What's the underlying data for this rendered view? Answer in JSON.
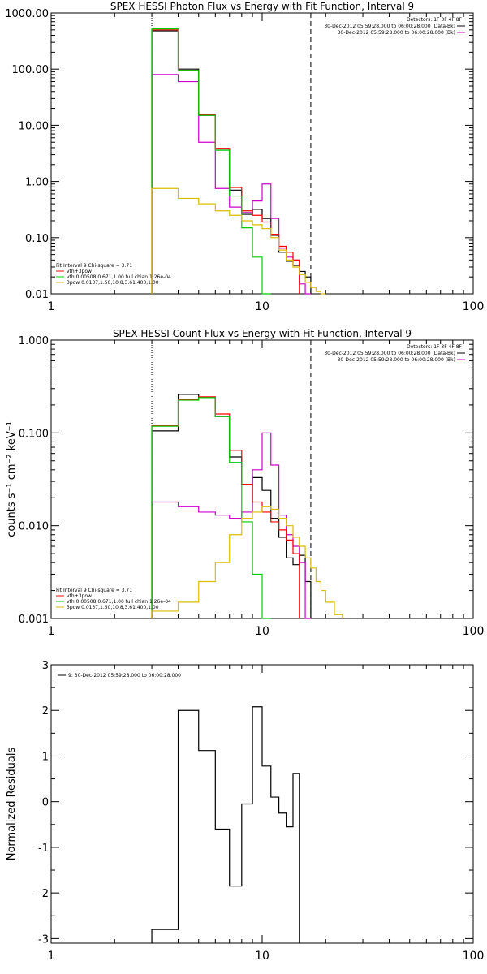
{
  "chart_data": [
    {
      "type": "line",
      "title": "SPEX HESSI Photon Flux vs Energy with Fit Function, Interval 9",
      "ylabel": "",
      "xscale": "log",
      "yscale": "log",
      "xlim": [
        1,
        100
      ],
      "ylim": [
        0.01,
        1000
      ],
      "x_ticks": [
        "1",
        "10",
        "100"
      ],
      "y_ticks": [
        "0.01",
        "0.10",
        "1.00",
        "10.00",
        "100.00",
        "1000.00"
      ],
      "legend_topright": [
        "Detectors: 1F 3F 4F 8F",
        "30-Dec-2012 05:59:28.000 to 06:00:28.000 (Data-Bk)",
        "30-Dec-2012 05:59:28.000 to 06:00:28.000 (Bk)"
      ],
      "legend_bottomleft": [
        "Fit Interval 9   Chi-square = 3.71",
        "vth+3pow",
        "vth 0.00508,0.671,1.00  full chian 1.26e-04",
        "3pow 0.0137,1.50,10.8,3.61,400,1.00"
      ],
      "vlines": [
        {
          "x": 3,
          "style": "dotted"
        },
        {
          "x": 17,
          "style": "dashed"
        }
      ],
      "edges": [
        3,
        4,
        5,
        6,
        7,
        8,
        9,
        10,
        11,
        12,
        13,
        14,
        15,
        16,
        17,
        18,
        19,
        20,
        22,
        24
      ],
      "series": [
        {
          "name": "Data-Bk",
          "color": "#000000",
          "values": [
            480,
            100,
            15,
            3.8,
            0.7,
            0.26,
            0.32,
            0.22,
            0.11,
            0.055,
            0.038,
            0.032,
            0.025,
            0.02
          ]
        },
        {
          "name": "Bk",
          "color": "#cc00cc",
          "values": [
            80,
            60,
            5,
            0.75,
            0.35,
            0.28,
            0.45,
            0.9,
            0.22,
            0.065,
            0.045,
            0.04,
            0.015,
            0.008
          ]
        },
        {
          "name": "vth+3pow",
          "color": "#ff0000",
          "values": [
            500,
            95,
            15.5,
            3.9,
            0.78,
            0.3,
            0.25,
            0.19,
            0.115,
            0.07,
            0.055,
            0.04
          ]
        },
        {
          "name": "vth",
          "color": "#00cc00",
          "values": [
            520,
            95,
            15,
            3.6,
            0.55,
            0.15,
            0.045,
            0.01
          ]
        },
        {
          "name": "3pow",
          "color": "#ddbb00",
          "values": [
            0.75,
            0.5,
            0.4,
            0.3,
            0.25,
            0.2,
            0.17,
            0.145,
            0.1,
            0.06,
            0.04,
            0.03,
            0.022,
            0.016,
            0.013,
            0.011,
            0.01
          ]
        }
      ]
    },
    {
      "type": "line",
      "title": "SPEX HESSI Count Flux vs Energy with Fit Function, Interval 9",
      "ylabel": "counts s⁻¹ cm⁻² keV⁻¹",
      "xscale": "log",
      "yscale": "log",
      "xlim": [
        1,
        100
      ],
      "ylim": [
        0.001,
        1
      ],
      "x_ticks": [
        "1",
        "10",
        "100"
      ],
      "y_ticks": [
        "0.001",
        "0.010",
        "0.100",
        "1.000"
      ],
      "legend_topright": [
        "Detectors: 1F 3F 4F 8F",
        "30-Dec-2012 05:59:28.000 to 06:00:28.000 (Data-Bk)",
        "30-Dec-2012 05:59:28.000 to 06:00:28.000 (Bk)"
      ],
      "legend_bottomleft": [
        "Fit Interval 9   Chi-square = 3.71",
        "vth+3pow",
        "vth 0.00508,0.671,1.00  full chian 1.26e-04",
        "3pow 0.0137,1.50,10.8,3.61,400,1.00"
      ],
      "vlines": [
        {
          "x": 3,
          "style": "dotted"
        },
        {
          "x": 17,
          "style": "dashed"
        }
      ],
      "edges": [
        3,
        4,
        5,
        6,
        7,
        8,
        9,
        10,
        11,
        12,
        13,
        14,
        15,
        16,
        17,
        18,
        19,
        20,
        22,
        24
      ],
      "series": [
        {
          "name": "Data-Bk",
          "color": "#000000",
          "values": [
            0.105,
            0.26,
            0.24,
            0.15,
            0.055,
            0.028,
            0.033,
            0.024,
            0.012,
            0.0075,
            0.0045,
            0.0038,
            0.0048,
            0.0025
          ]
        },
        {
          "name": "Bk",
          "color": "#cc00cc",
          "values": [
            0.018,
            0.016,
            0.014,
            0.013,
            0.012,
            0.014,
            0.04,
            0.1,
            0.045,
            0.013,
            0.008,
            0.006,
            0.004,
            0.001
          ]
        },
        {
          "name": "vth+3pow",
          "color": "#ff0000",
          "values": [
            0.12,
            0.23,
            0.245,
            0.16,
            0.065,
            0.028,
            0.018,
            0.014,
            0.011,
            0.009,
            0.007,
            0.005
          ]
        },
        {
          "name": "vth",
          "color": "#00cc00",
          "values": [
            0.118,
            0.225,
            0.24,
            0.15,
            0.048,
            0.011,
            0.003,
            0.001
          ]
        },
        {
          "name": "3pow",
          "color": "#ddbb00",
          "values": [
            0.0012,
            0.0015,
            0.0025,
            0.004,
            0.008,
            0.012,
            0.014,
            0.016,
            0.015,
            0.012,
            0.01,
            0.0075,
            0.006,
            0.0045,
            0.0035,
            0.0025,
            0.002,
            0.0015,
            0.0011
          ]
        }
      ]
    },
    {
      "type": "line",
      "title": "",
      "ylabel": "Normalized Residuals",
      "xscale": "log",
      "yscale": "linear",
      "xlim": [
        1,
        100
      ],
      "ylim": [
        -3.1,
        3
      ],
      "x_ticks": [
        "1",
        "10",
        "100"
      ],
      "y_ticks": [
        "-3",
        "-2",
        "-1",
        "0",
        "1",
        "2",
        "3"
      ],
      "legend_topleft": [
        "9: 30-Dec-2012 05:59:28.000 to 06:00:28.000"
      ],
      "edges": [
        3,
        4,
        5,
        6,
        7,
        8,
        9,
        10,
        11,
        12,
        13,
        14,
        15,
        16,
        17
      ],
      "series": [
        {
          "name": "9: 30-Dec-2012 05:59:28.000 to 06:00:28.000",
          "color": "#000000",
          "values": [
            -2.8,
            2.0,
            1.12,
            -0.6,
            -1.85,
            -0.05,
            2.08,
            0.78,
            0.1,
            -0.25,
            -0.55,
            0.62
          ]
        }
      ]
    }
  ]
}
